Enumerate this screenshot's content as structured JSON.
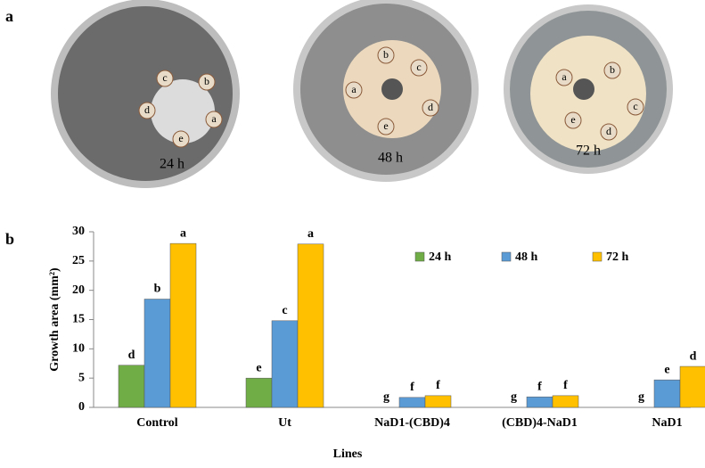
{
  "panel_a": {
    "label": "a",
    "plates": [
      {
        "time": "24 h",
        "discs": [
          "c",
          "b",
          "d",
          "a",
          "e"
        ]
      },
      {
        "time": "48 h",
        "discs": [
          "b",
          "c",
          "a",
          "d",
          "e"
        ]
      },
      {
        "time": "72 h",
        "discs": [
          "a",
          "b",
          "c",
          "e",
          "d"
        ]
      }
    ]
  },
  "panel_b": {
    "label": "b"
  },
  "chart_data": {
    "type": "bar",
    "ylabel": "Growth area (mm²)",
    "xlabel": "Lines",
    "categories": [
      "Control",
      "Ut",
      "NaD1-(CBD)4",
      "(CBD)4-NaD1",
      "NaD1"
    ],
    "series": [
      {
        "name": "24 h",
        "color": "#70ad47",
        "values": [
          7.2,
          5.0,
          0,
          0,
          0
        ],
        "letters": [
          "d",
          "e",
          "g",
          "g",
          "g"
        ]
      },
      {
        "name": "48 h",
        "color": "#5b9bd5",
        "values": [
          18.5,
          14.8,
          1.7,
          1.8,
          4.7
        ],
        "letters": [
          "b",
          "c",
          "f",
          "f",
          "e"
        ]
      },
      {
        "name": "72 h",
        "color": "#ffc000",
        "values": [
          28,
          27.9,
          2.0,
          2.0,
          7.0
        ],
        "letters": [
          "a",
          "a",
          "f",
          "f",
          "d"
        ]
      }
    ],
    "ylim": [
      0,
      30
    ],
    "yticks": [
      0,
      5,
      10,
      15,
      20,
      25,
      30
    ],
    "grid": false,
    "legend": "top-right"
  }
}
